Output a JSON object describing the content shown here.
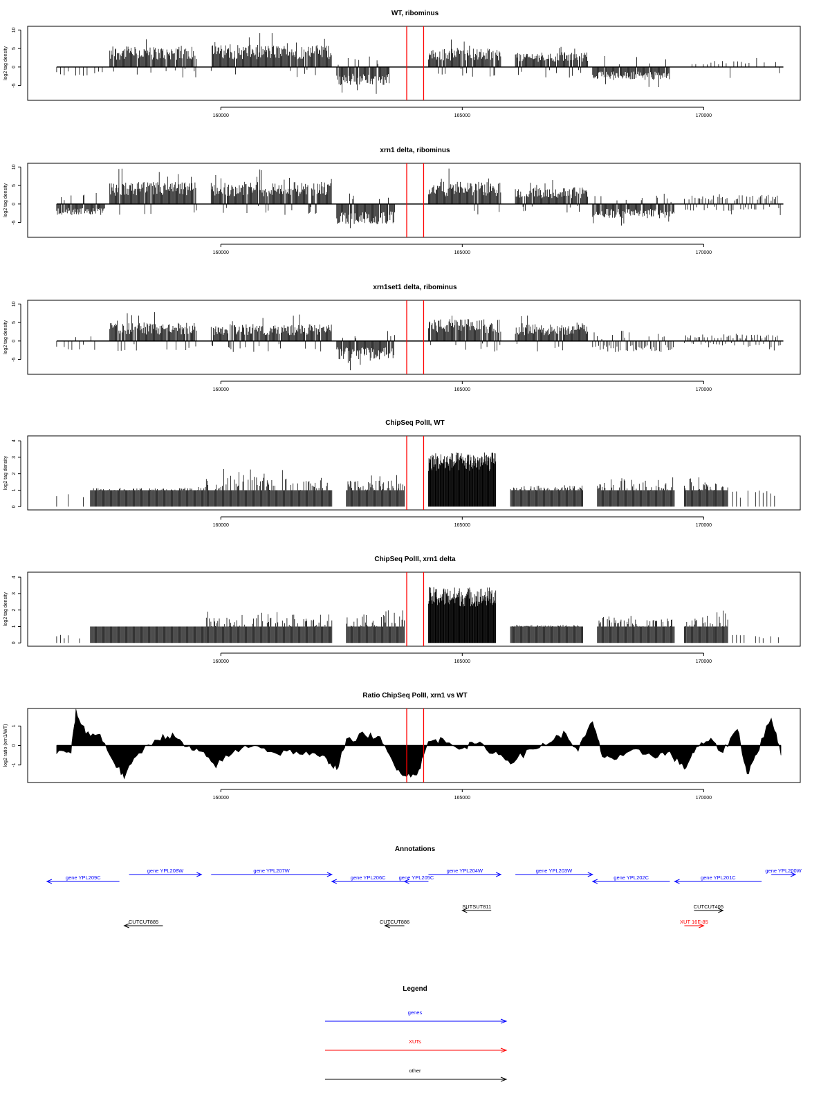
{
  "chart_data": [
    {
      "type": "bar",
      "title": "WT, ribominus",
      "ylabel": "log2 tag density",
      "ylim": [
        -9,
        11
      ],
      "yticks": [
        -5,
        0,
        5,
        10
      ],
      "xticks": [
        160000,
        165000,
        170000
      ],
      "xlim": [
        156000,
        172000
      ],
      "markers": [
        163850,
        164200
      ],
      "profile": [
        {
          "from": 156600,
          "to": 157600,
          "amp": -2.5,
          "style": "sparse"
        },
        {
          "from": 157700,
          "to": 159500,
          "amp": 5.5,
          "style": "dense"
        },
        {
          "from": 159800,
          "to": 162300,
          "amp": 6,
          "style": "dense"
        },
        {
          "from": 162400,
          "to": 163500,
          "amp": -5,
          "style": "dense"
        },
        {
          "from": 164300,
          "to": 165800,
          "amp": 5,
          "style": "dense"
        },
        {
          "from": 166100,
          "to": 167600,
          "amp": 4,
          "style": "dense"
        },
        {
          "from": 167700,
          "to": 169300,
          "amp": -3.5,
          "style": "dense"
        },
        {
          "from": 169600,
          "to": 171600,
          "amp": 1.8,
          "style": "sparse"
        }
      ]
    },
    {
      "type": "bar",
      "title": "xrn1 delta, ribominus",
      "ylabel": "log2 tag density",
      "ylim": [
        -9,
        11
      ],
      "yticks": [
        -5,
        0,
        5,
        10
      ],
      "xticks": [
        160000,
        165000,
        170000
      ],
      "xlim": [
        156000,
        172000
      ],
      "markers": [
        163850,
        164200
      ],
      "profile": [
        {
          "from": 156600,
          "to": 157600,
          "amp": -3,
          "style": "dense"
        },
        {
          "from": 157700,
          "to": 159500,
          "amp": 6,
          "style": "dense"
        },
        {
          "from": 159800,
          "to": 162300,
          "amp": 6,
          "style": "dense"
        },
        {
          "from": 162400,
          "to": 163600,
          "amp": -5.5,
          "style": "dense"
        },
        {
          "from": 164300,
          "to": 165800,
          "amp": 6,
          "style": "dense"
        },
        {
          "from": 166100,
          "to": 167600,
          "amp": 4.5,
          "style": "dense"
        },
        {
          "from": 167700,
          "to": 169400,
          "amp": -3.8,
          "style": "dense"
        },
        {
          "from": 169600,
          "to": 171600,
          "amp": 2.5,
          "style": "mixed"
        }
      ]
    },
    {
      "type": "bar",
      "title": "xrn1set1 delta, ribominus",
      "ylabel": "log2 tag density",
      "ylim": [
        -9,
        11
      ],
      "yticks": [
        -5,
        0,
        5,
        10
      ],
      "xticks": [
        160000,
        165000,
        170000
      ],
      "xlim": [
        156000,
        172000
      ],
      "markers": [
        163850,
        164200
      ],
      "profile": [
        {
          "from": 156600,
          "to": 157600,
          "amp": -2.5,
          "style": "sparse"
        },
        {
          "from": 157700,
          "to": 159500,
          "amp": 5,
          "style": "dense"
        },
        {
          "from": 159800,
          "to": 162300,
          "amp": 4.5,
          "style": "dense"
        },
        {
          "from": 162400,
          "to": 163600,
          "amp": -5,
          "style": "dense"
        },
        {
          "from": 164300,
          "to": 165800,
          "amp": 6,
          "style": "dense"
        },
        {
          "from": 166100,
          "to": 167600,
          "amp": 4.5,
          "style": "dense"
        },
        {
          "from": 167700,
          "to": 169400,
          "amp": -3,
          "style": "mixed"
        },
        {
          "from": 169600,
          "to": 171600,
          "amp": 1.8,
          "style": "mixed"
        }
      ]
    },
    {
      "type": "bar",
      "title": "ChipSeq PolII, WT",
      "ylabel": "log2 tag density",
      "ylim": [
        -0.2,
        4.3
      ],
      "yticks": [
        0,
        1,
        2,
        3,
        4
      ],
      "xticks": [
        160000,
        165000,
        170000
      ],
      "xlim": [
        156000,
        172000
      ],
      "markers": [
        163850,
        164200
      ],
      "profile": [
        {
          "from": 156600,
          "to": 157200,
          "amp": 1,
          "style": "sparse"
        },
        {
          "from": 157300,
          "to": 159700,
          "amp": 1.2,
          "style": "step"
        },
        {
          "from": 159700,
          "to": 162300,
          "amp": 2.3,
          "style": "step"
        },
        {
          "from": 162600,
          "to": 163800,
          "amp": 2,
          "style": "step"
        },
        {
          "from": 164300,
          "to": 165700,
          "amp": 3.3,
          "style": "solid"
        },
        {
          "from": 166000,
          "to": 167500,
          "amp": 1.3,
          "style": "step"
        },
        {
          "from": 167800,
          "to": 169400,
          "amp": 1.8,
          "style": "step"
        },
        {
          "from": 169600,
          "to": 170500,
          "amp": 1.8,
          "style": "step"
        },
        {
          "from": 170600,
          "to": 171600,
          "amp": 1,
          "style": "sparse"
        }
      ]
    },
    {
      "type": "bar",
      "title": "ChipSeq PolII, xrn1 delta",
      "ylabel": "log2 tag density",
      "ylim": [
        -0.2,
        4.3
      ],
      "yticks": [
        0,
        1,
        2,
        3,
        4
      ],
      "xticks": [
        160000,
        165000,
        170000
      ],
      "xlim": [
        156000,
        172000
      ],
      "markers": [
        163850,
        164200
      ],
      "profile": [
        {
          "from": 156600,
          "to": 157200,
          "amp": 0.5,
          "style": "sparse"
        },
        {
          "from": 157300,
          "to": 159700,
          "amp": 1,
          "style": "step"
        },
        {
          "from": 159700,
          "to": 162300,
          "amp": 1.9,
          "style": "step"
        },
        {
          "from": 162600,
          "to": 163800,
          "amp": 2,
          "style": "step"
        },
        {
          "from": 164300,
          "to": 165700,
          "amp": 3.4,
          "style": "solid"
        },
        {
          "from": 166000,
          "to": 167500,
          "amp": 1.1,
          "style": "step"
        },
        {
          "from": 167800,
          "to": 169400,
          "amp": 1.8,
          "style": "step"
        },
        {
          "from": 169600,
          "to": 170500,
          "amp": 2,
          "style": "step"
        },
        {
          "from": 170600,
          "to": 171600,
          "amp": 0.5,
          "style": "sparse"
        }
      ]
    },
    {
      "type": "area",
      "title": "Ratio ChipSeq PolII, xrn1 vs WT",
      "ylabel": "log2 ratio (xrn1/WT)",
      "ylim": [
        -1.9,
        1.9
      ],
      "yticks": [
        -1,
        0,
        1
      ],
      "xticks": [
        160000,
        165000,
        170000
      ],
      "xlim": [
        156000,
        172000
      ],
      "markers": [
        163850,
        164200
      ],
      "points": [
        [
          156600,
          -0.4
        ],
        [
          156900,
          -0.3
        ],
        [
          157000,
          1.7
        ],
        [
          157200,
          0.7
        ],
        [
          157500,
          0.5
        ],
        [
          157800,
          -0.9
        ],
        [
          158000,
          -1.6
        ],
        [
          158300,
          -0.4
        ],
        [
          158700,
          0.4
        ],
        [
          159000,
          0.5
        ],
        [
          159300,
          -0.1
        ],
        [
          159600,
          -0.4
        ],
        [
          159900,
          -1.0
        ],
        [
          160300,
          -0.3
        ],
        [
          160700,
          0.1
        ],
        [
          161100,
          -0.4
        ],
        [
          161500,
          -0.3
        ],
        [
          161900,
          -0.5
        ],
        [
          162200,
          -0.7
        ],
        [
          162400,
          -1.2
        ],
        [
          162600,
          0.2
        ],
        [
          163000,
          0.6
        ],
        [
          163300,
          0.3
        ],
        [
          163600,
          -1.0
        ],
        [
          163850,
          -1.6
        ],
        [
          164100,
          -1.3
        ],
        [
          164300,
          0.2
        ],
        [
          164600,
          0.3
        ],
        [
          165000,
          -0.1
        ],
        [
          165300,
          0.1
        ],
        [
          165700,
          -0.4
        ],
        [
          166000,
          -0.8
        ],
        [
          166400,
          -0.3
        ],
        [
          166800,
          0.2
        ],
        [
          167100,
          0.6
        ],
        [
          167400,
          -0.2
        ],
        [
          167700,
          1.2
        ],
        [
          167900,
          -0.5
        ],
        [
          168200,
          -0.7
        ],
        [
          168600,
          -0.3
        ],
        [
          169000,
          -0.5
        ],
        [
          169300,
          -0.4
        ],
        [
          169600,
          -1.2
        ],
        [
          169800,
          -0.3
        ],
        [
          170100,
          0.3
        ],
        [
          170400,
          -0.3
        ],
        [
          170700,
          0.9
        ],
        [
          170900,
          -1.5
        ],
        [
          171100,
          -0.4
        ],
        [
          171400,
          1.5
        ],
        [
          171600,
          -0.5
        ]
      ]
    }
  ],
  "annotations": {
    "title": "Annotations",
    "genes": [
      {
        "label": "gene YPL209C",
        "from": 156400,
        "to": 157900,
        "dir": "left",
        "row": 1
      },
      {
        "label": "gene YPL208W",
        "from": 158100,
        "to": 159600,
        "dir": "right",
        "row": 0
      },
      {
        "label": "gene YPL207W",
        "from": 159800,
        "to": 162300,
        "dir": "right",
        "row": 0
      },
      {
        "label": "gene YPL206C",
        "from": 162300,
        "to": 163800,
        "dir": "left",
        "row": 1
      },
      {
        "label": "gene YPL205C",
        "from": 163800,
        "to": 164300,
        "dir": "left",
        "row": 1
      },
      {
        "label": "gene YPL204W",
        "from": 164300,
        "to": 165800,
        "dir": "right",
        "row": 0
      },
      {
        "label": "gene YPL203W",
        "from": 166100,
        "to": 167700,
        "dir": "right",
        "row": 0
      },
      {
        "label": "gene YPL202C",
        "from": 167700,
        "to": 169300,
        "dir": "left",
        "row": 1
      },
      {
        "label": "gene YPL201C",
        "from": 169400,
        "to": 171200,
        "dir": "left",
        "row": 1
      },
      {
        "label": "gene YPL200W",
        "from": 171400,
        "to": 171900,
        "dir": "right",
        "row": 0
      }
    ],
    "others": [
      {
        "label": "SUTSUT811",
        "from": 165000,
        "to": 165600,
        "dir": "left",
        "row": 2
      },
      {
        "label": "CUTCUT885",
        "from": 158000,
        "to": 158800,
        "dir": "left",
        "row": 3
      },
      {
        "label": "CUTCUT886",
        "from": 163400,
        "to": 163800,
        "dir": "left",
        "row": 3
      },
      {
        "label": "CUTCUT405",
        "from": 169800,
        "to": 170400,
        "dir": "right",
        "row": 2
      }
    ],
    "xuts": [
      {
        "label": "XUT 16F-85",
        "from": 169600,
        "to": 170000,
        "dir": "right",
        "row": 3
      }
    ]
  },
  "legend": {
    "title": "Legend",
    "items": [
      {
        "label": "genes",
        "color": "#0000ff"
      },
      {
        "label": "XUTs",
        "color": "#ff0000"
      },
      {
        "label": "other",
        "color": "#000000"
      }
    ]
  },
  "colors": {
    "marker": "#ff0000",
    "gene": "#0000ff",
    "xut": "#ff0000",
    "other": "#000000",
    "bars": "#000000"
  }
}
